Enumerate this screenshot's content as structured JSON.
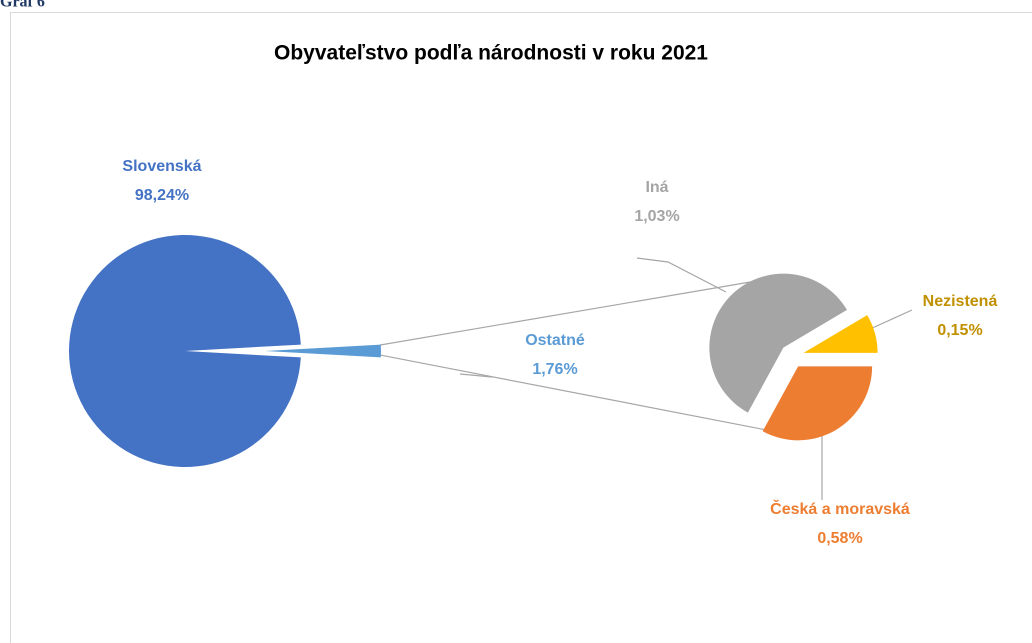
{
  "caption": "Graf 6",
  "chart_data": {
    "type": "pie-of-pie",
    "title": "Obyvateľstvo podľa národnosti v roku 2021",
    "categories": [
      "Slovenská",
      "Ostatné"
    ],
    "values": [
      98.24,
      1.76
    ],
    "value_labels": [
      "98,24%",
      "1,76%"
    ],
    "colors": [
      "#4472c4",
      "#5b9bd5"
    ],
    "breakdown": {
      "categories": [
        "Česká a moravská",
        "Iná",
        "Nezistená"
      ],
      "values": [
        0.58,
        1.03,
        0.15
      ],
      "value_labels": [
        "0,58%",
        "1,03%",
        "0,15%"
      ],
      "colors": [
        "#ed7d31",
        "#a5a5a5",
        "#ffc000"
      ]
    }
  }
}
